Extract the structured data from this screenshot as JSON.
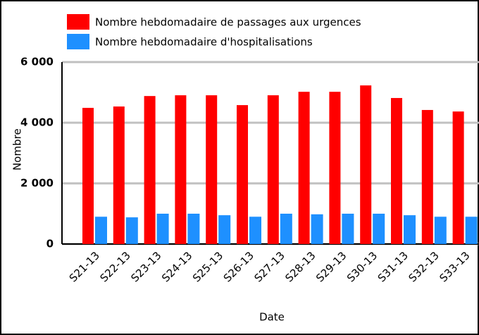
{
  "chart_data": {
    "type": "bar",
    "x_label": "Date",
    "y_label": "Nombre",
    "categories": [
      "S21-13",
      "S22-13",
      "S23-13",
      "S24-13",
      "S25-13",
      "S26-13",
      "S27-13",
      "S28-13",
      "S29-13",
      "S30-13",
      "S31-13",
      "S32-13",
      "S33-13"
    ],
    "series": [
      {
        "name": "Nombre hebdomadaire de passages aux urgences",
        "color": "#ff0000",
        "values": [
          4490,
          4535,
          4880,
          4905,
          4905,
          4580,
          4905,
          5020,
          5020,
          5230,
          4815,
          4420,
          4370
        ]
      },
      {
        "name": "Nombre hebdomadaire d'hospitalisations",
        "color": "#1e90ff",
        "values": [
          900,
          880,
          1000,
          1000,
          950,
          900,
          1000,
          980,
          1000,
          1000,
          950,
          900,
          900
        ]
      }
    ],
    "ylim": [
      0,
      6000
    ],
    "yticks": [
      0,
      {
        "value": 2000,
        "label": "2 000"
      },
      {
        "value": 4000,
        "label": "4 000"
      },
      {
        "value": 6000,
        "label": "6 000"
      }
    ],
    "grid": true
  }
}
